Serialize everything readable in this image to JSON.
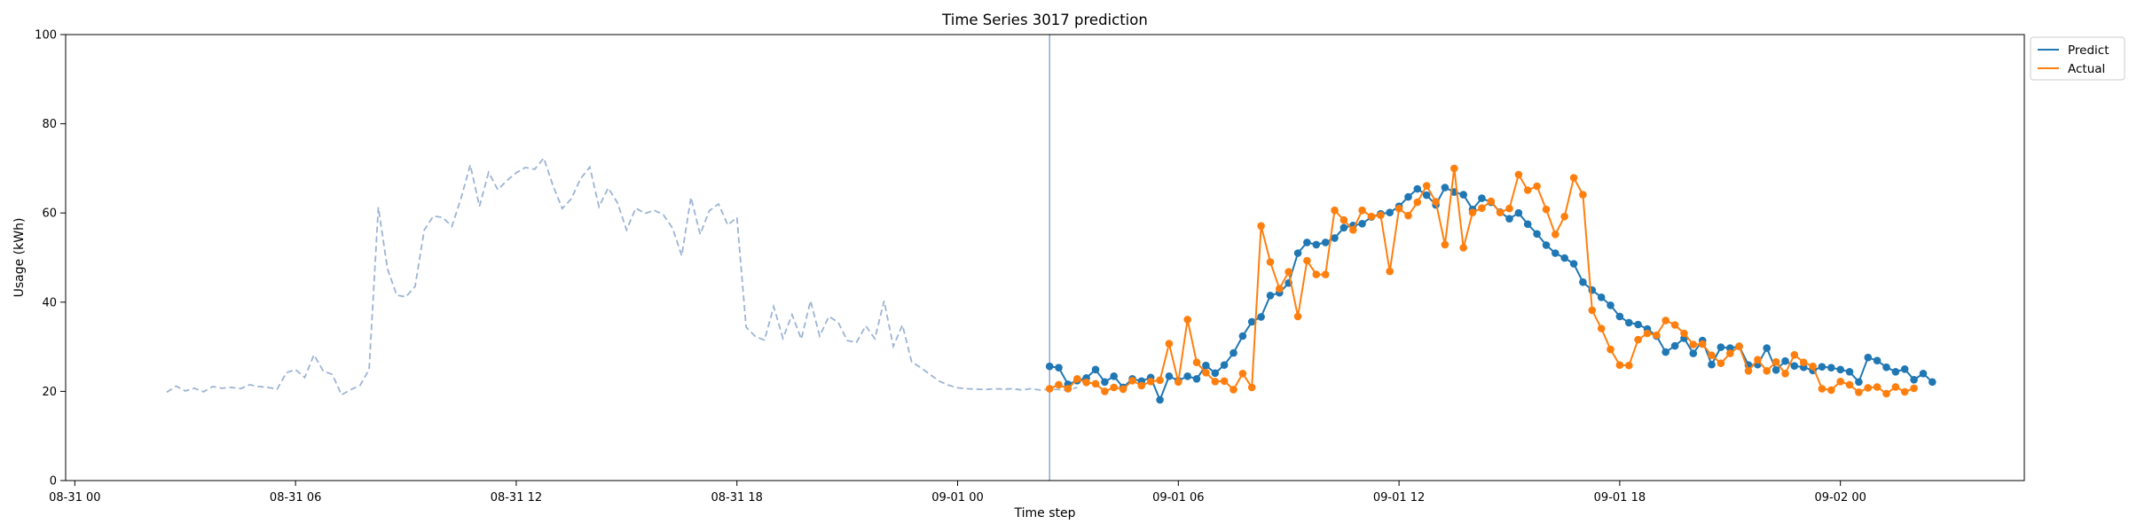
{
  "chart_data": {
    "type": "line",
    "title": "Time Series 3017 prediction",
    "xlabel": "Time step",
    "ylabel": "Usage (kWh)",
    "ylim": [
      0,
      100
    ],
    "yticks": [
      0,
      20,
      40,
      60,
      80,
      100
    ],
    "xlim": [
      "2024-08-30 23:45",
      "2024-09-02 05:00"
    ],
    "xticks": [
      {
        "t": "2024-08-31 00:00",
        "label": "08-31 00"
      },
      {
        "t": "2024-08-31 06:00",
        "label": "08-31 06"
      },
      {
        "t": "2024-08-31 12:00",
        "label": "08-31 12"
      },
      {
        "t": "2024-08-31 18:00",
        "label": "08-31 18"
      },
      {
        "t": "2024-09-01 00:00",
        "label": "09-01 00"
      },
      {
        "t": "2024-09-01 06:00",
        "label": "09-01 06"
      },
      {
        "t": "2024-09-01 12:00",
        "label": "09-01 12"
      },
      {
        "t": "2024-09-01 18:00",
        "label": "09-01 18"
      },
      {
        "t": "2024-09-02 00:00",
        "label": "09-02 00"
      }
    ],
    "grid": false,
    "legend_position": "outside-top-right",
    "forecast_start": "2024-09-01 02:30",
    "history": {
      "start": "2024-08-31 02:30",
      "step_minutes": 15,
      "style": "dashed",
      "color": "#9db4d4",
      "values": [
        19.8,
        21.2,
        20.1,
        20.7,
        19.9,
        21.1,
        20.7,
        20.9,
        20.6,
        21.5,
        21.1,
        20.9,
        20.5,
        24.2,
        24.9,
        23.1,
        28.2,
        24.6,
        23.8,
        19.2,
        20.4,
        21.3,
        24.9,
        61.3,
        47.5,
        41.6,
        41.2,
        43.5,
        56.2,
        59.3,
        59.0,
        57.0,
        63.3,
        70.8,
        61.5,
        69.1,
        65.2,
        67.3,
        69.0,
        70.2,
        69.8,
        72.3,
        66.1,
        61.0,
        63.2,
        67.7,
        70.3,
        61.4,
        65.6,
        62.3,
        56.2,
        61.1,
        59.9,
        60.6,
        59.6,
        56.6,
        50.4,
        63.5,
        55.2,
        60.5,
        62.0,
        57.3,
        59.0,
        34.4,
        32.3,
        31.5,
        39.0,
        31.9,
        37.2,
        31.7,
        40.3,
        32.4,
        36.8,
        35.5,
        31.4,
        31.0,
        34.7,
        31.8,
        40.3,
        30.1,
        34.9,
        26.6,
        25.3,
        23.8,
        22.3,
        21.4,
        20.8,
        20.6,
        20.5,
        20.4,
        20.6,
        20.5,
        20.6,
        20.3,
        20.6,
        20.3,
        20.5,
        20.4,
        20.2,
        20.9
      ]
    },
    "series": [
      {
        "name": "Predict",
        "color": "#1f77b4",
        "start": "2024-09-01 02:30",
        "step_minutes": 15,
        "values": [
          25.6,
          25.3,
          21.6,
          22.4,
          23.0,
          24.9,
          22.1,
          23.4,
          20.9,
          22.8,
          22.3,
          23.1,
          18.1,
          23.4,
          22.4,
          23.4,
          22.8,
          25.8,
          24.1,
          25.9,
          28.6,
          32.4,
          35.6,
          36.7,
          41.5,
          42.1,
          44.3,
          51.0,
          53.4,
          52.9,
          53.4,
          54.4,
          56.7,
          57.2,
          57.6,
          59.1,
          59.8,
          60.1,
          61.5,
          63.6,
          65.4,
          64.0,
          61.8,
          65.7,
          64.7,
          64.1,
          60.8,
          63.3,
          62.4,
          60.2,
          58.7,
          60.0,
          57.5,
          55.3,
          52.8,
          51.0,
          49.9,
          48.6,
          44.5,
          42.7,
          41.1,
          39.3,
          36.8,
          35.4,
          35.0,
          34.0,
          32.4,
          28.8,
          30.2,
          31.9,
          28.5,
          31.4,
          26.0,
          29.9,
          29.7,
          30.1,
          25.9,
          26.0,
          29.7,
          24.8,
          26.8,
          25.7,
          25.4,
          24.7,
          25.5,
          25.3,
          24.9,
          24.4,
          22.1,
          27.6,
          26.9,
          25.4,
          24.4,
          25.0,
          22.6,
          24.0,
          22.1
        ]
      },
      {
        "name": "Actual",
        "color": "#ff7f0e",
        "start": "2024-09-01 02:30",
        "step_minutes": 15,
        "values": [
          20.6,
          21.5,
          20.6,
          22.8,
          22.0,
          21.7,
          20.0,
          20.9,
          20.5,
          22.4,
          21.3,
          22.2,
          22.5,
          30.7,
          22.1,
          36.1,
          26.5,
          24.2,
          22.2,
          22.3,
          20.4,
          24.0,
          20.9,
          57.1,
          49.0,
          43.0,
          46.8,
          36.8,
          49.3,
          46.2,
          46.2,
          60.6,
          58.4,
          56.2,
          60.6,
          59.2,
          59.5,
          46.9,
          61.0,
          59.4,
          62.4,
          66.1,
          62.5,
          52.9,
          70.0,
          52.2,
          60.1,
          61.1,
          62.6,
          60.1,
          61.0,
          68.6,
          65.1,
          66.0,
          60.8,
          55.2,
          59.2,
          67.9,
          64.1,
          38.2,
          34.1,
          29.4,
          25.9,
          25.8,
          31.6,
          33.0,
          32.6,
          35.9,
          34.9,
          33.0,
          30.5,
          30.6,
          28.1,
          26.3,
          28.5,
          30.1,
          24.6,
          27.1,
          24.6,
          26.6,
          24.0,
          28.2,
          26.5,
          25.6,
          20.6,
          20.3,
          22.2,
          21.5,
          19.8,
          20.8,
          21.0,
          19.5,
          21.0,
          19.9,
          20.7
        ]
      }
    ]
  }
}
